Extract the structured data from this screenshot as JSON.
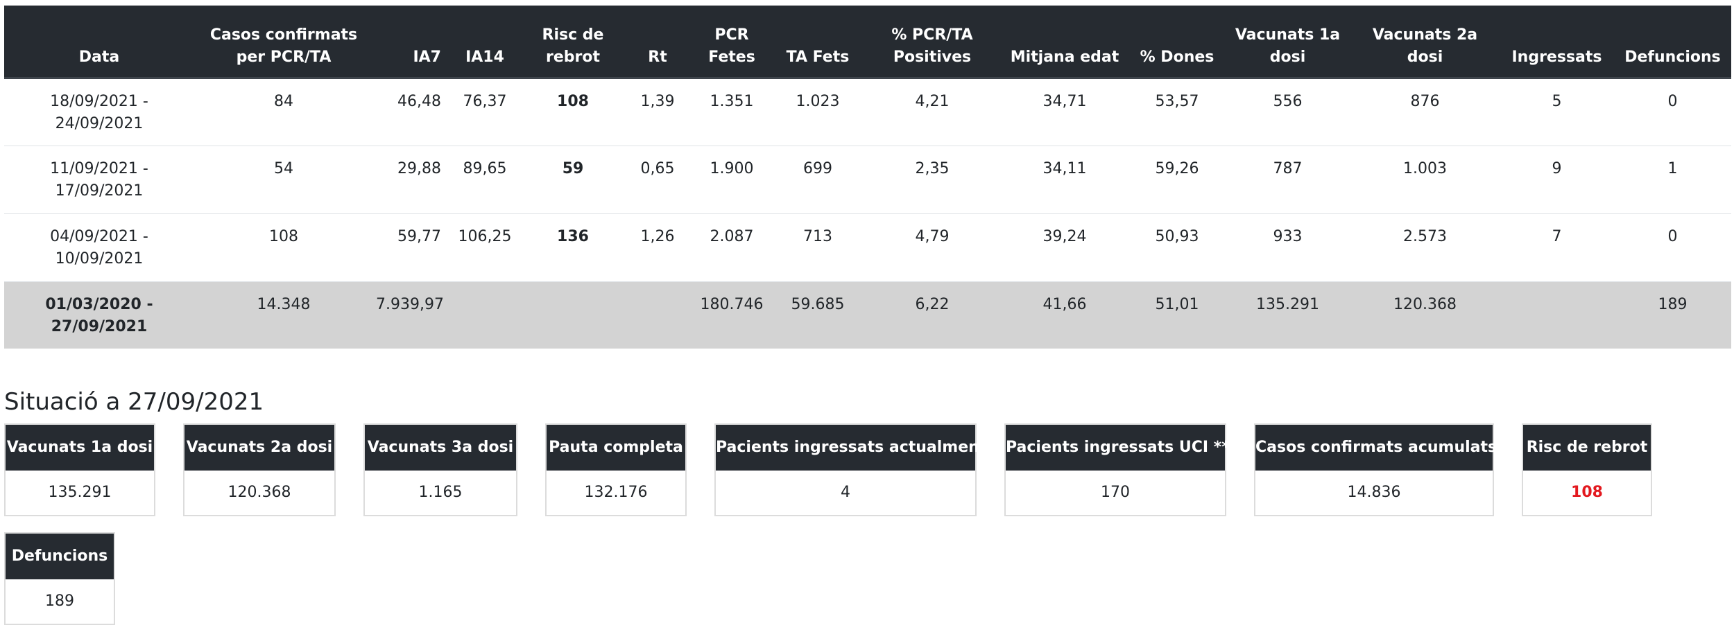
{
  "table": {
    "headers": [
      "Data",
      "Casos confirmats per PCR/TA",
      "IA7",
      "IA14",
      "Risc de rebrot",
      "Rt",
      "PCR Fetes",
      "TA Fets",
      "% PCR/TA Positives",
      "Mitjana edat",
      "% Dones",
      "Vacunats 1a dosi",
      "Vacunats 2a dosi",
      "Ingressats",
      "Defuncions"
    ],
    "rows": [
      {
        "date": "18/09/2021 - 24/09/2021",
        "casos": "84",
        "ia7": "46,48",
        "ia14": "76,37",
        "risc": "108",
        "risc_level": "high",
        "rt": "1,39",
        "pcr": "1.351",
        "ta": "1.023",
        "pos": "4,21",
        "edat": "34,71",
        "dones": "53,57",
        "vac1": "556",
        "vac2": "876",
        "ingressats": "5",
        "defuncions": "0"
      },
      {
        "date": "11/09/2021 - 17/09/2021",
        "casos": "54",
        "ia7": "29,88",
        "ia14": "89,65",
        "risc": "59",
        "risc_level": "medium",
        "rt": "0,65",
        "pcr": "1.900",
        "ta": "699",
        "pos": "2,35",
        "edat": "34,11",
        "dones": "59,26",
        "vac1": "787",
        "vac2": "1.003",
        "ingressats": "9",
        "defuncions": "1"
      },
      {
        "date": "04/09/2021 - 10/09/2021",
        "casos": "108",
        "ia7": "59,77",
        "ia14": "106,25",
        "risc": "136",
        "risc_level": "high",
        "rt": "1,26",
        "pcr": "2.087",
        "ta": "713",
        "pos": "4,79",
        "edat": "39,24",
        "dones": "50,93",
        "vac1": "933",
        "vac2": "2.573",
        "ingressats": "7",
        "defuncions": "0"
      }
    ],
    "total": {
      "date": "01/03/2020 - 27/09/2021",
      "casos": "14.348",
      "ia7": "7.939,97",
      "ia14": "",
      "risc": "",
      "rt": "",
      "pcr": "180.746",
      "ta": "59.685",
      "pos": "6,22",
      "edat": "41,66",
      "dones": "51,01",
      "vac1": "135.291",
      "vac2": "120.368",
      "ingressats": "",
      "defuncions": "189"
    }
  },
  "situacio": {
    "title": "Situació a 27/09/2021",
    "cards": [
      {
        "label": "Vacunats 1a dosi",
        "value": "135.291"
      },
      {
        "label": "Vacunats 2a dosi",
        "value": "120.368"
      },
      {
        "label": "Vacunats 3a dosi",
        "value": "1.165"
      },
      {
        "label": "Pauta completa",
        "value": "132.176"
      },
      {
        "label": "Pacients ingressats actualment",
        "value": "4"
      },
      {
        "label": "Pacients ingressats UCI **",
        "value": "170"
      },
      {
        "label": "Casos confirmats acumulats",
        "value": "14.836"
      },
      {
        "label": "Risc de rebrot",
        "value": "108"
      },
      {
        "label": "Defuncions",
        "value": "189"
      }
    ]
  },
  "colors": {
    "header_bg": "#262b31",
    "risk_high": "#e3191f",
    "risk_medium": "#f0a115",
    "total_row_bg": "#d3d3d3"
  }
}
